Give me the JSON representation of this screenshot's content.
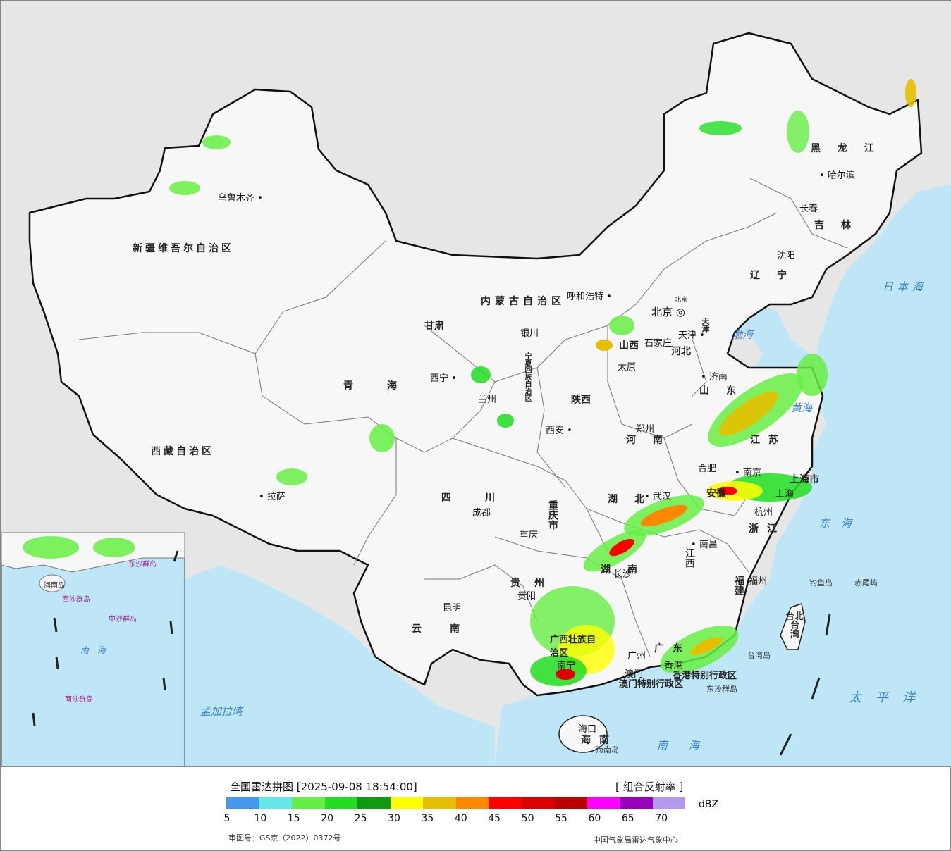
{
  "legend": {
    "title": "全国雷达拼图 [2025-09-08 18:54:00]",
    "product": "[ 组合反射率 ]",
    "unit": "dBZ",
    "colors": [
      "#4499ee",
      "#66e6e6",
      "#66ee44",
      "#22dd22",
      "#119911",
      "#ffff00",
      "#e6c000",
      "#ff8800",
      "#ff0000",
      "#dd0000",
      "#bb0000",
      "#ff00ff",
      "#9900bb",
      "#b399ee"
    ],
    "ticks": [
      "5",
      "10",
      "15",
      "20",
      "25",
      "30",
      "35",
      "40",
      "45",
      "50",
      "55",
      "60",
      "65",
      "70"
    ],
    "review_number": "审图号：GS京（2022）0372号",
    "credit": "中国气象局雷达气象中心"
  },
  "map": {
    "colors": {
      "background": "#e6e6e6",
      "land": "#f7f7f7",
      "sea": "#bfe6f6",
      "border": "#111111"
    },
    "provinces": [
      "新疆维吾尔自治区",
      "西藏自治区",
      "青海",
      "甘肃",
      "内蒙古自治区",
      "黑龙江",
      "吉林",
      "辽宁",
      "河北",
      "山西",
      "陕西",
      "宁夏回族自治区",
      "河南",
      "山东",
      "江苏",
      "安徽",
      "湖北",
      "四川",
      "重庆市",
      "贵州",
      "云南",
      "湖南",
      "江西",
      "浙江",
      "福建",
      "广西壮族自治区",
      "广东",
      "海南",
      "台湾",
      "上海市",
      "天津",
      "北京"
    ],
    "cities": [
      "乌鲁木齐",
      "拉萨",
      "西宁",
      "兰州",
      "银川",
      "呼和浩特",
      "北京",
      "天津",
      "石家庄",
      "太原",
      "济南",
      "郑州",
      "西安",
      "成都",
      "重庆",
      "武汉",
      "合肥",
      "南京",
      "杭州",
      "上海",
      "南昌",
      "长沙",
      "贵阳",
      "昆明",
      "南宁",
      "广州",
      "香港",
      "澳门",
      "海口",
      "福州",
      "台北",
      "哈尔滨",
      "长春",
      "沈阳"
    ],
    "seas": [
      "日本海",
      "渤海",
      "黄海",
      "东海",
      "太平洋",
      "南海",
      "孟加拉湾"
    ],
    "islands": [
      "钓鱼岛",
      "赤尾屿",
      "台湾岛",
      "东沙群岛",
      "海南岛",
      "香港特别行政区",
      "澳门特别行政区"
    ],
    "inset_labels": [
      "南海",
      "西沙群岛",
      "中沙群岛",
      "南沙群岛",
      "东沙群岛",
      "海南岛"
    ]
  }
}
